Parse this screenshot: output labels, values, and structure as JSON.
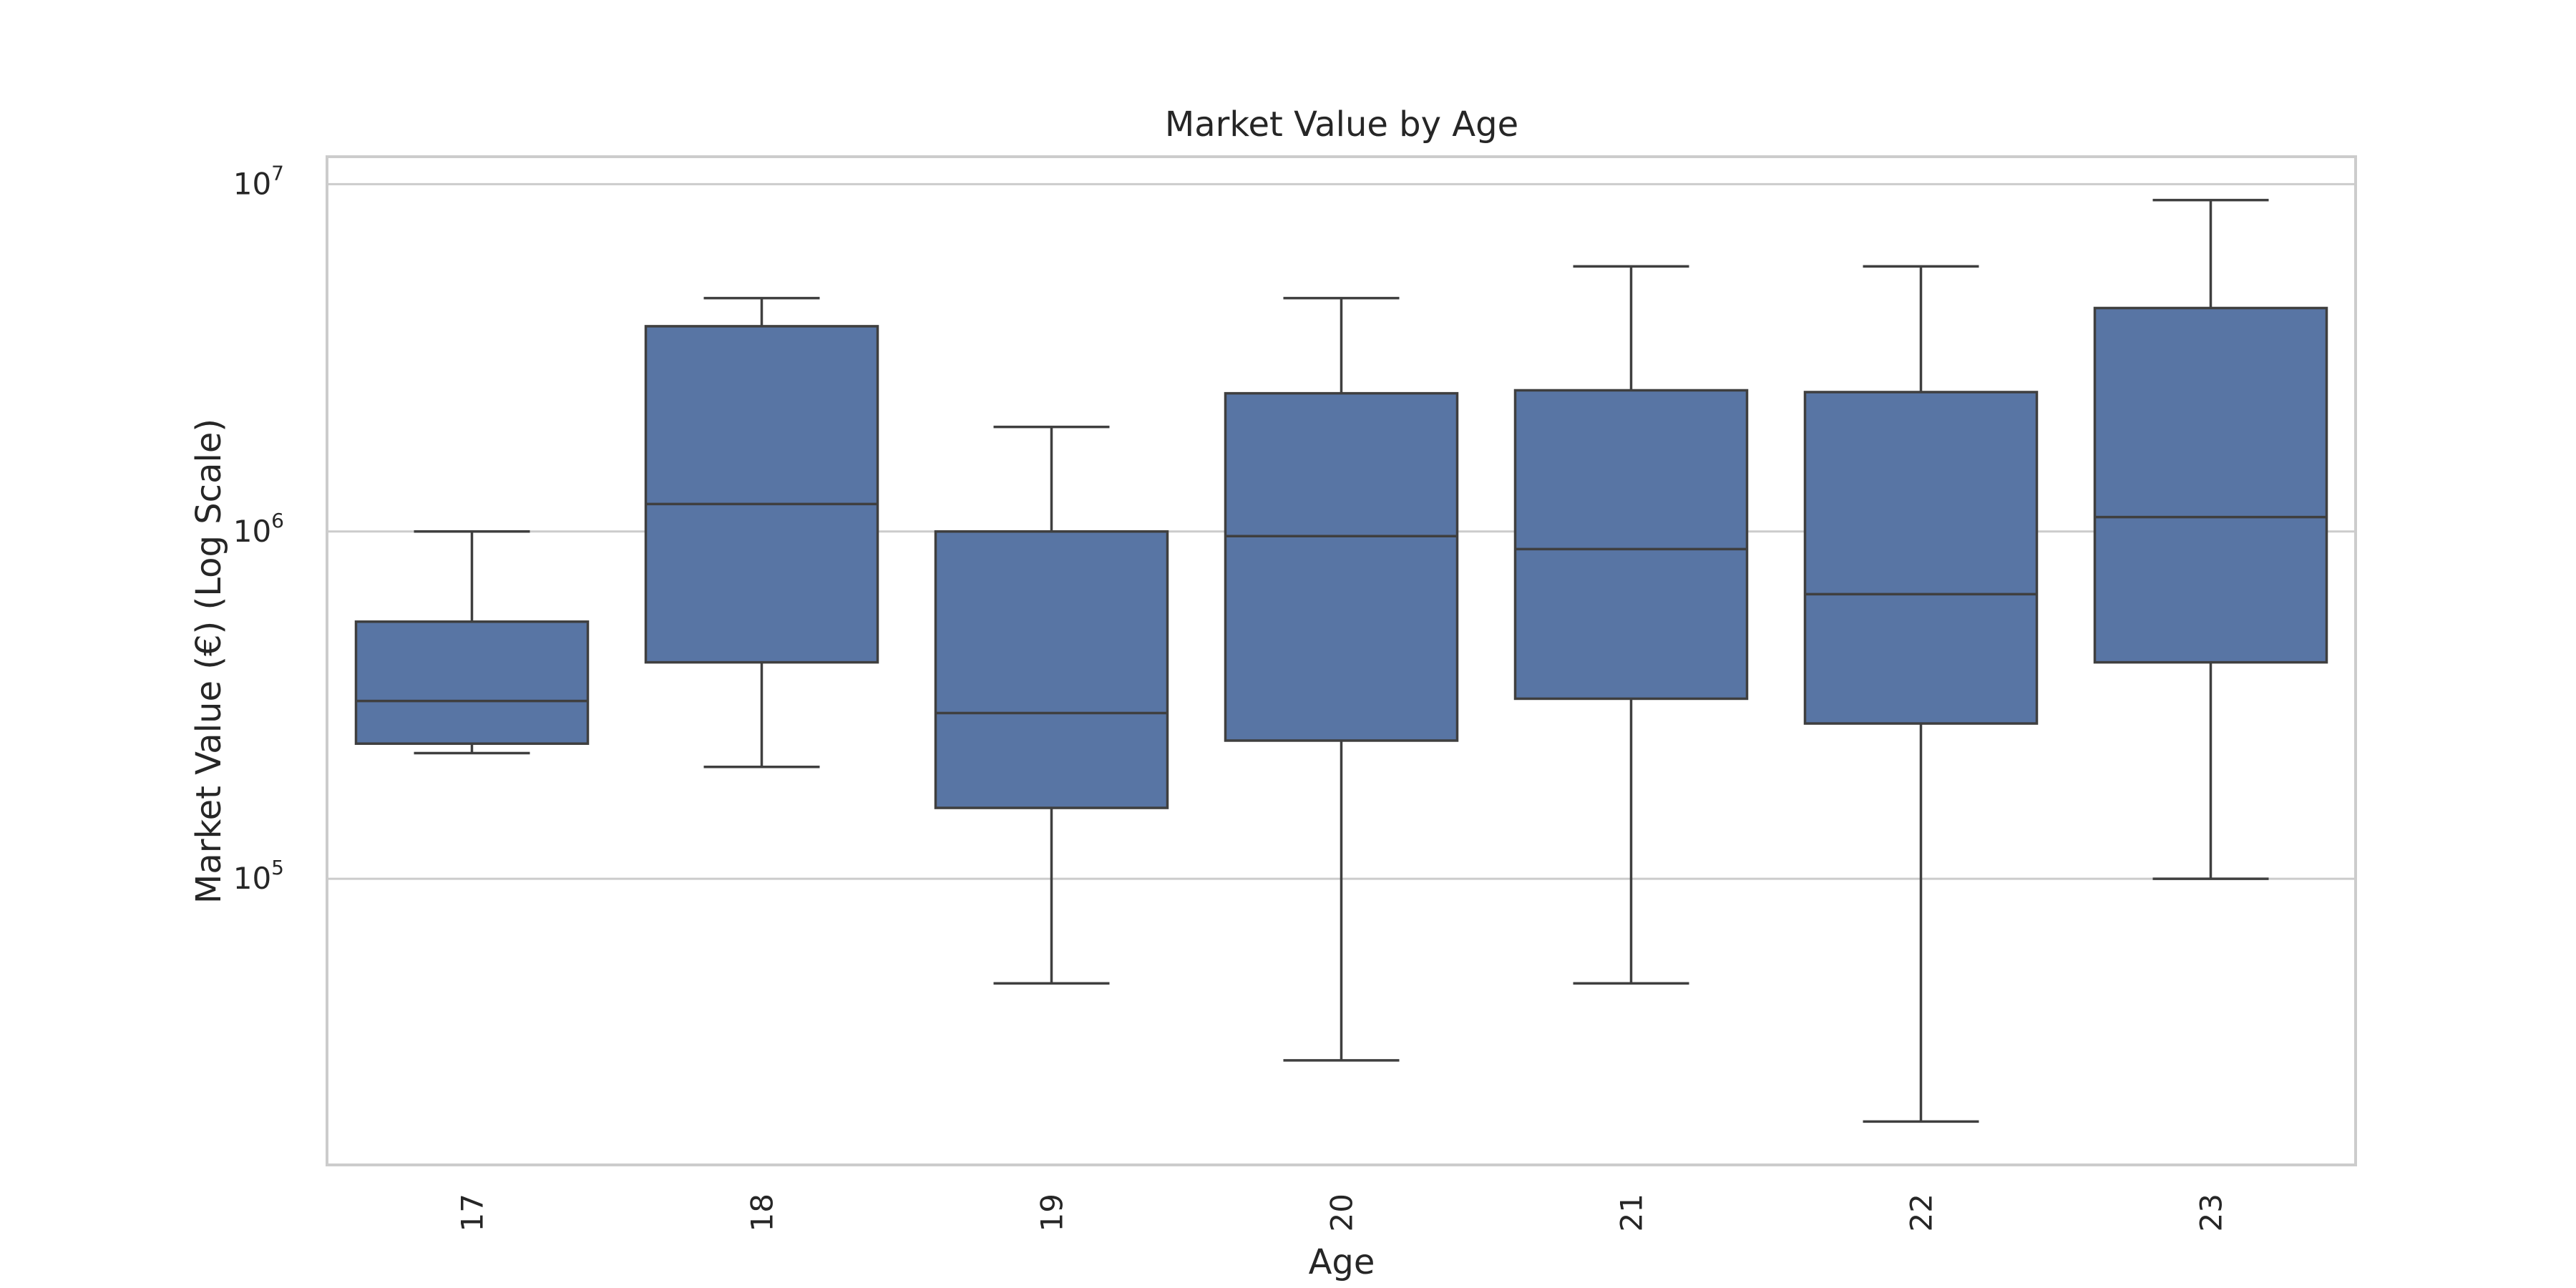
{
  "chart_data": {
    "type": "box",
    "title": "Market Value by Age",
    "xlabel": "Age",
    "ylabel": "Market Value (€) (Log Scale)",
    "yscale": "log",
    "ylim": [
      15000,
      12000000
    ],
    "yticks": [
      {
        "value": 100000,
        "base": "10",
        "exp": "5"
      },
      {
        "value": 1000000,
        "base": "10",
        "exp": "6"
      },
      {
        "value": 10000000,
        "base": "10",
        "exp": "7"
      }
    ],
    "grid": "horizontal",
    "box_color": "#5875a4",
    "categories": [
      "17",
      "18",
      "19",
      "20",
      "21",
      "22",
      "23"
    ],
    "boxes": [
      {
        "whislo": 230000,
        "q1": 245000,
        "med": 325000,
        "q3": 550000,
        "whishi": 1000000
      },
      {
        "whislo": 210000,
        "q1": 420000,
        "med": 1200000,
        "q3": 3900000,
        "whishi": 4700000
      },
      {
        "whislo": 50000,
        "q1": 160000,
        "med": 300000,
        "q3": 1000000,
        "whishi": 2000000
      },
      {
        "whislo": 30000,
        "q1": 250000,
        "med": 970000,
        "q3": 2500000,
        "whishi": 4700000
      },
      {
        "whislo": 50000,
        "q1": 330000,
        "med": 890000,
        "q3": 2550000,
        "whishi": 5800000
      },
      {
        "whislo": 20000,
        "q1": 280000,
        "med": 660000,
        "q3": 2520000,
        "whishi": 5800000
      },
      {
        "whislo": 100000,
        "q1": 420000,
        "med": 1100000,
        "q3": 4400000,
        "whishi": 9000000
      }
    ]
  }
}
